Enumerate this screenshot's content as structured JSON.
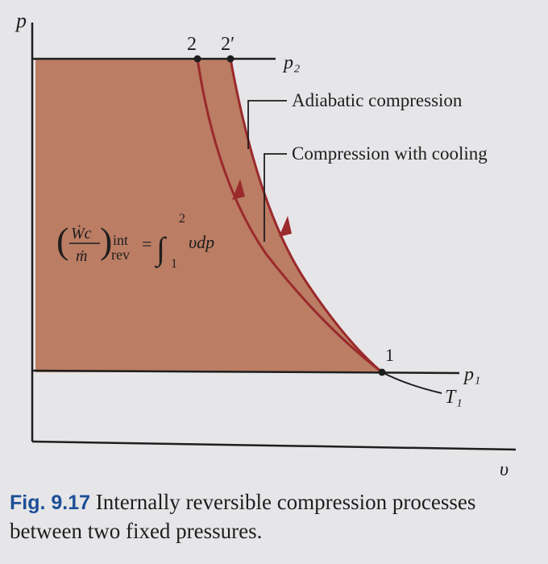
{
  "axes": {
    "y_label": "p",
    "x_label": "υ"
  },
  "states": {
    "state_2": "2",
    "state_2_prime": "2′",
    "state_1": "1"
  },
  "pressures": {
    "high": "p₂",
    "low": "p₁"
  },
  "isotherm_label": "T₁",
  "process_labels": {
    "adiabatic": "Adiabatic compression",
    "cooling": "Compression with cooling"
  },
  "work_expression": {
    "numerator": "Ẇc",
    "denominator": "ṁ",
    "subscript_top": "int",
    "subscript_bottom": "rev",
    "equals": "=",
    "integral": "∫",
    "upper_limit": "2",
    "lower_limit": "1",
    "integrand": "υdp"
  },
  "caption": {
    "label": "Fig. 9.17",
    "text": "Internally reversible compression processes between two fixed pressures."
  },
  "colors": {
    "area_fill": "#bb7d64",
    "curve": "#9a2a2c",
    "axis": "#1e1e1e",
    "caption_label": "#1c4f96",
    "background": "#e6e5e8"
  }
}
